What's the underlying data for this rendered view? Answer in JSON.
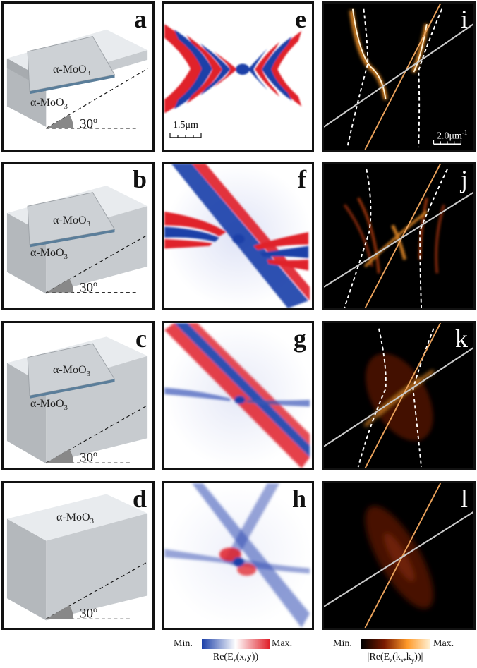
{
  "panels": {
    "a": {
      "label": "a",
      "top_material": "α-MoO",
      "top_sub": "3",
      "bottom_material": "α-MoO",
      "bottom_sub": "3",
      "angle": "30",
      "angle_sup": "o"
    },
    "b": {
      "label": "b",
      "top_material": "α-MoO",
      "top_sub": "3",
      "bottom_material": "α-MoO",
      "bottom_sub": "3",
      "angle": "30",
      "angle_sup": "o"
    },
    "c": {
      "label": "c",
      "top_material": "α-MoO",
      "top_sub": "3",
      "bottom_material": "α-MoO",
      "bottom_sub": "3",
      "angle": "30",
      "angle_sup": "o"
    },
    "d": {
      "label": "d",
      "top_material": "α-MoO",
      "top_sub": "3",
      "angle": "30",
      "angle_sup": "o"
    },
    "e": {
      "label": "e",
      "scalebar": "1.5μm"
    },
    "f": {
      "label": "f"
    },
    "g": {
      "label": "g"
    },
    "h": {
      "label": "h"
    },
    "i": {
      "label": "i",
      "scalebar": "2.0μm",
      "scalebar_sup": "-1"
    },
    "j": {
      "label": "j"
    },
    "k": {
      "label": "k"
    },
    "l": {
      "label": "l"
    }
  },
  "colorbars": {
    "real": {
      "min": "Min.",
      "max": "Max.",
      "label_pre": "Re(E",
      "label_sub": "z",
      "label_post": "(x,y))",
      "colors": [
        "#1b3fa8",
        "#ffffff",
        "#e0202a"
      ]
    },
    "abs": {
      "min": "Min.",
      "max": "Max.",
      "label_pre": "|Re(E",
      "label_sub": "z",
      "label_mid": "(k",
      "label_sub2": "x",
      "label_mid2": ",k",
      "label_sub3": "y",
      "label_post": "))|",
      "colors": [
        "#000000",
        "#7a1a00",
        "#ff9a2a",
        "#fff2d6"
      ]
    }
  },
  "colors": {
    "field_blue": "#1b3fa8",
    "field_red": "#e0202a",
    "iso_line": "#e8a05a",
    "grey_line": "#c9c9c9",
    "dashed": "#ffffff"
  }
}
